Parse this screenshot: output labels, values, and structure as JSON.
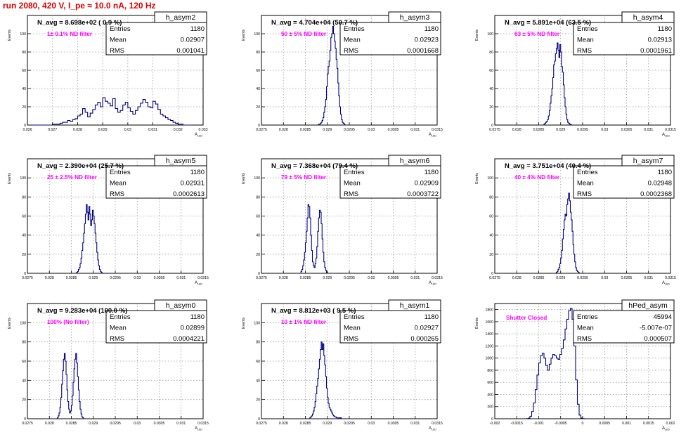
{
  "header": {
    "run_title": "run 2080,   420 V, I_pe ≈ 10.0 nA, 120 Hz"
  },
  "colors": {
    "histogram": "#000080",
    "title": "#e00000",
    "note": "#ff00ff",
    "grid": "#9a9a9a"
  },
  "chart_data": [
    {
      "type": "histogram",
      "name": "h_asym2",
      "stats": [
        {
          "label": "Entries",
          "value": "1180"
        },
        {
          "label": "Mean",
          "value": "0.02907"
        },
        {
          "label": "RMS",
          "value": "0.001041"
        }
      ],
      "n_avg_text": "N_avg = 8.698e+02 ( 0.9 %)",
      "note": "1± 0.1% ND filter",
      "ylabel": "Events",
      "xlabel": "A_LED",
      "xlim": [
        0.026,
        0.033
      ],
      "ylim": [
        0,
        120
      ],
      "xticks": [
        0.026,
        0.027,
        0.028,
        0.029,
        0.03,
        0.031,
        0.032,
        0.033
      ],
      "xtick_labels": [
        "0.026",
        "0.027",
        "0.028",
        "0.029",
        "0.03",
        "0.031",
        "0.032",
        "0.033"
      ],
      "yticks": [
        0,
        20,
        40,
        60,
        80,
        100
      ],
      "yscale": 1,
      "bins": {
        "x0": 0.0262,
        "width": 0.0001,
        "values": [
          0,
          0,
          0,
          0,
          0,
          0,
          0,
          0,
          1,
          1,
          1,
          2,
          3,
          3,
          5,
          4,
          6,
          7,
          10,
          12,
          18,
          14,
          9,
          13,
          17,
          22,
          25,
          20,
          30,
          26,
          24,
          21,
          29,
          18,
          14,
          16,
          22,
          25,
          19,
          15,
          12,
          16,
          20,
          24,
          28,
          25,
          20,
          19,
          26,
          23,
          17,
          12,
          10,
          8,
          6,
          5,
          3,
          2,
          1,
          1,
          0,
          0,
          0
        ]
      }
    },
    {
      "type": "histogram",
      "name": "h_asym3",
      "stats": [
        {
          "label": "Entries",
          "value": "1180"
        },
        {
          "label": "Mean",
          "value": "0.02923"
        },
        {
          "label": "RMS",
          "value": "0.0001668"
        }
      ],
      "n_avg_text": "N_avg = 4.704e+04 (50.7 %)",
      "note": "50 ± 5% ND filter",
      "ylabel": "Events",
      "xlabel": "A_LED",
      "xlim": [
        0.0275,
        0.0315
      ],
      "ylim": [
        0,
        120
      ],
      "xticks": [
        0.0275,
        0.028,
        0.0285,
        0.029,
        0.0295,
        0.03,
        0.0305,
        0.031,
        0.0315
      ],
      "xtick_labels": [
        "0.0275",
        "0.028",
        "0.0285",
        "0.029",
        "0.0295",
        "0.03",
        "0.0305",
        "0.031",
        "0.0315"
      ],
      "yticks": [
        0,
        20,
        40,
        60,
        80,
        100
      ],
      "yscale": 1,
      "bins": {
        "x0": 0.0288,
        "width": 2e-05,
        "values": [
          1,
          1,
          2,
          3,
          5,
          8,
          14,
          20,
          28,
          42,
          56,
          64,
          70,
          82,
          96,
          100,
          108,
          100,
          92,
          84,
          72,
          62,
          46,
          32,
          20,
          12,
          6,
          3,
          2,
          1
        ]
      }
    },
    {
      "type": "histogram",
      "name": "h_asym4",
      "stats": [
        {
          "label": "Entries",
          "value": "1180"
        },
        {
          "label": "Mean",
          "value": "0.02913"
        },
        {
          "label": "RMS",
          "value": "0.0001961"
        }
      ],
      "n_avg_text": "N_avg = 5.891e+04 (63.5 %)",
      "note": "63 ± 5% ND filter",
      "ylabel": "Events",
      "xlabel": "A_LED",
      "xlim": [
        0.0275,
        0.0315
      ],
      "ylim": [
        0,
        120
      ],
      "xticks": [
        0.0275,
        0.028,
        0.0285,
        0.029,
        0.0295,
        0.03,
        0.0305,
        0.031,
        0.0315
      ],
      "xtick_labels": [
        "0.0275",
        "0.028",
        "0.0285",
        "0.029",
        "0.0295",
        "0.03",
        "0.0305",
        "0.031",
        "0.0315"
      ],
      "yticks": [
        0,
        20,
        40,
        60,
        80,
        100
      ],
      "yscale": 1,
      "bins": {
        "x0": 0.02862,
        "width": 2e-05,
        "values": [
          1,
          2,
          3,
          4,
          6,
          10,
          16,
          24,
          32,
          40,
          52,
          66,
          70,
          78,
          84,
          90,
          82,
          74,
          88,
          80,
          64,
          58,
          44,
          30,
          20,
          12,
          6,
          3,
          2,
          1,
          1
        ]
      }
    },
    {
      "type": "histogram",
      "name": "h_asym5",
      "stats": [
        {
          "label": "Entries",
          "value": "1180"
        },
        {
          "label": "Mean",
          "value": "0.02931"
        },
        {
          "label": "RMS",
          "value": "0.0002613"
        }
      ],
      "n_avg_text": "N_avg = 2.390e+04 (25.7 %)",
      "note": "25 ± 2.5% ND filter",
      "ylabel": "Events",
      "xlabel": "A_LED",
      "xlim": [
        0.0275,
        0.0315
      ],
      "ylim": [
        0,
        120
      ],
      "xticks": [
        0.0275,
        0.028,
        0.0285,
        0.029,
        0.0295,
        0.03,
        0.0305,
        0.031,
        0.0315
      ],
      "xtick_labels": [
        "0.0275",
        "0.028",
        "0.0285",
        "0.029",
        "0.0295",
        "0.03",
        "0.0305",
        "0.031",
        "0.0315"
      ],
      "yticks": [
        0,
        20,
        40,
        60,
        80,
        100
      ],
      "yscale": 1,
      "bins": {
        "x0": 0.02862,
        "width": 2e-05,
        "values": [
          1,
          2,
          4,
          6,
          10,
          16,
          24,
          32,
          42,
          52,
          62,
          72,
          64,
          56,
          70,
          62,
          50,
          56,
          66,
          60,
          52,
          42,
          32,
          22,
          14,
          8,
          4,
          2,
          1
        ]
      }
    },
    {
      "type": "histogram",
      "name": "h_asym6",
      "stats": [
        {
          "label": "Entries",
          "value": "1180"
        },
        {
          "label": "Mean",
          "value": "0.02909"
        },
        {
          "label": "RMS",
          "value": "0.0003722"
        }
      ],
      "n_avg_text": "N_avg = 7.368e+04 (79.4 %)",
      "note": "79 ± 5% ND filter",
      "ylabel": "Events",
      "xlabel": "A_LED",
      "xlim": [
        0.0275,
        0.0315
      ],
      "ylim": [
        0,
        120
      ],
      "xticks": [
        0.0275,
        0.028,
        0.0285,
        0.029,
        0.0295,
        0.03,
        0.0305,
        0.031,
        0.0315
      ],
      "xtick_labels": [
        "0.0275",
        "0.028",
        "0.0285",
        "0.029",
        "0.0295",
        "0.03",
        "0.0305",
        "0.031",
        "0.0315"
      ],
      "yticks": [
        0,
        20,
        40,
        60,
        80,
        100
      ],
      "yscale": 1,
      "bins": {
        "x0": 0.0284,
        "width": 2e-05,
        "values": [
          2,
          4,
          8,
          14,
          22,
          32,
          44,
          58,
          72,
          70,
          58,
          40,
          24,
          12,
          8,
          6,
          10,
          16,
          28,
          44,
          58,
          66,
          64,
          52,
          36,
          22,
          12,
          6,
          3,
          1
        ]
      }
    },
    {
      "type": "histogram",
      "name": "h_asym7",
      "stats": [
        {
          "label": "Entries",
          "value": "1180"
        },
        {
          "label": "Mean",
          "value": "0.02948"
        },
        {
          "label": "RMS",
          "value": "0.0002368"
        }
      ],
      "n_avg_text": "N_avg = 3.751e+04 (40.4 %)",
      "note": "40 ± 4% ND filter",
      "ylabel": "Events",
      "xlabel": "A_LED",
      "xlim": [
        0.0275,
        0.0315
      ],
      "ylim": [
        0,
        120
      ],
      "xticks": [
        0.0275,
        0.028,
        0.0285,
        0.029,
        0.0295,
        0.03,
        0.0305,
        0.031,
        0.0315
      ],
      "xtick_labels": [
        "0.0275",
        "0.028",
        "0.0285",
        "0.029",
        "0.0295",
        "0.03",
        "0.0305",
        "0.031",
        "0.0315"
      ],
      "yticks": [
        0,
        20,
        40,
        60,
        80,
        100
      ],
      "yscale": 1,
      "bins": {
        "x0": 0.0289,
        "width": 2e-05,
        "values": [
          1,
          2,
          4,
          6,
          10,
          16,
          24,
          36,
          46,
          56,
          62,
          60,
          72,
          78,
          84,
          76,
          64,
          56,
          44,
          30,
          20,
          12,
          6,
          3,
          2,
          1
        ]
      }
    },
    {
      "type": "histogram",
      "name": "h_asym0",
      "stats": [
        {
          "label": "Entries",
          "value": "1180"
        },
        {
          "label": "Mean",
          "value": "0.02899"
        },
        {
          "label": "RMS",
          "value": "0.0004221"
        }
      ],
      "n_avg_text": "N_avg = 9.283e+04 (100.0 %)",
      "note": "100% (No filter)",
      "ylabel": "Events",
      "xlabel": "A_LED",
      "xlim": [
        0.0275,
        0.0315
      ],
      "ylim": [
        0,
        120
      ],
      "xticks": [
        0.0275,
        0.028,
        0.0285,
        0.029,
        0.0295,
        0.03,
        0.0305,
        0.031,
        0.0315
      ],
      "xtick_labels": [
        "0.0275",
        "0.028",
        "0.0285",
        "0.029",
        "0.0295",
        "0.03",
        "0.0305",
        "0.031",
        "0.0315"
      ],
      "yticks": [
        0,
        20,
        40,
        60,
        80,
        100
      ],
      "yscale": 1,
      "bins": {
        "x0": 0.02818,
        "width": 2e-05,
        "values": [
          1,
          3,
          6,
          12,
          22,
          36,
          50,
          62,
          68,
          60,
          46,
          30,
          18,
          10,
          6,
          8,
          14,
          24,
          38,
          52,
          62,
          68,
          58,
          44,
          30,
          18,
          10,
          5,
          2,
          1
        ]
      }
    },
    {
      "type": "histogram",
      "name": "h_asym1",
      "stats": [
        {
          "label": "Entries",
          "value": "1180"
        },
        {
          "label": "Mean",
          "value": "0.02927"
        },
        {
          "label": "RMS",
          "value": "0.000265"
        }
      ],
      "n_avg_text": "N_avg = 8.812e+03 ( 9.5 %)",
      "note": "10 ± 1% ND filter",
      "ylabel": "Events",
      "xlabel": "A_LED",
      "xlim": [
        0.0275,
        0.0315
      ],
      "ylim": [
        0,
        120
      ],
      "xticks": [
        0.0275,
        0.028,
        0.0285,
        0.029,
        0.0295,
        0.03,
        0.0305,
        0.031,
        0.0315
      ],
      "xtick_labels": [
        "0.0275",
        "0.028",
        "0.0285",
        "0.029",
        "0.0295",
        "0.03",
        "0.0305",
        "0.031",
        "0.0315"
      ],
      "yticks": [
        0,
        20,
        40,
        60,
        80,
        100
      ],
      "yscale": 1,
      "bins": {
        "x0": 0.0286,
        "width": 2e-05,
        "values": [
          1,
          2,
          3,
          5,
          8,
          12,
          18,
          26,
          34,
          42,
          52,
          62,
          72,
          80,
          72,
          78,
          66,
          56,
          44,
          32,
          22,
          16,
          12,
          10,
          8,
          6,
          4,
          3,
          2,
          2,
          1,
          1,
          0,
          1,
          0,
          1
        ]
      }
    },
    {
      "type": "histogram",
      "name": "hPed_asym",
      "stats": [
        {
          "label": "Entries",
          "value": "45994"
        },
        {
          "label": "Mean",
          "value": "-5.007e-07"
        },
        {
          "label": "RMS",
          "value": "0.000507"
        }
      ],
      "n_avg_text": "",
      "note": "Shutter Closed",
      "ylabel": "Events",
      "xlabel": "A_LED",
      "xlim": [
        -0.002,
        0.002
      ],
      "ylim": [
        0,
        1900
      ],
      "xticks": [
        -0.002,
        -0.0015,
        -0.001,
        -0.0005,
        0,
        0.0005,
        0.001,
        0.0015,
        0.002
      ],
      "xtick_labels": [
        "-0.002",
        "-0.0015",
        "-0.001",
        "-0.0005",
        "0",
        "0.0005",
        "0.001",
        "0.0015",
        "0.002"
      ],
      "yticks": [
        0,
        200,
        400,
        600,
        800,
        1000,
        1200,
        1400,
        1600,
        1800
      ],
      "yscale": 1,
      "bins": {
        "x0": -0.00128,
        "width": 4e-05,
        "values": [
          2,
          10,
          40,
          120,
          260,
          480,
          720,
          920,
          1040,
          1080,
          1000,
          880,
          800,
          900,
          1000,
          1060,
          1040,
          1000,
          980,
          1060,
          1160,
          1300,
          1480,
          1640,
          1780,
          1820,
          1640,
          1200,
          640,
          240,
          60,
          12,
          2
        ]
      }
    }
  ]
}
